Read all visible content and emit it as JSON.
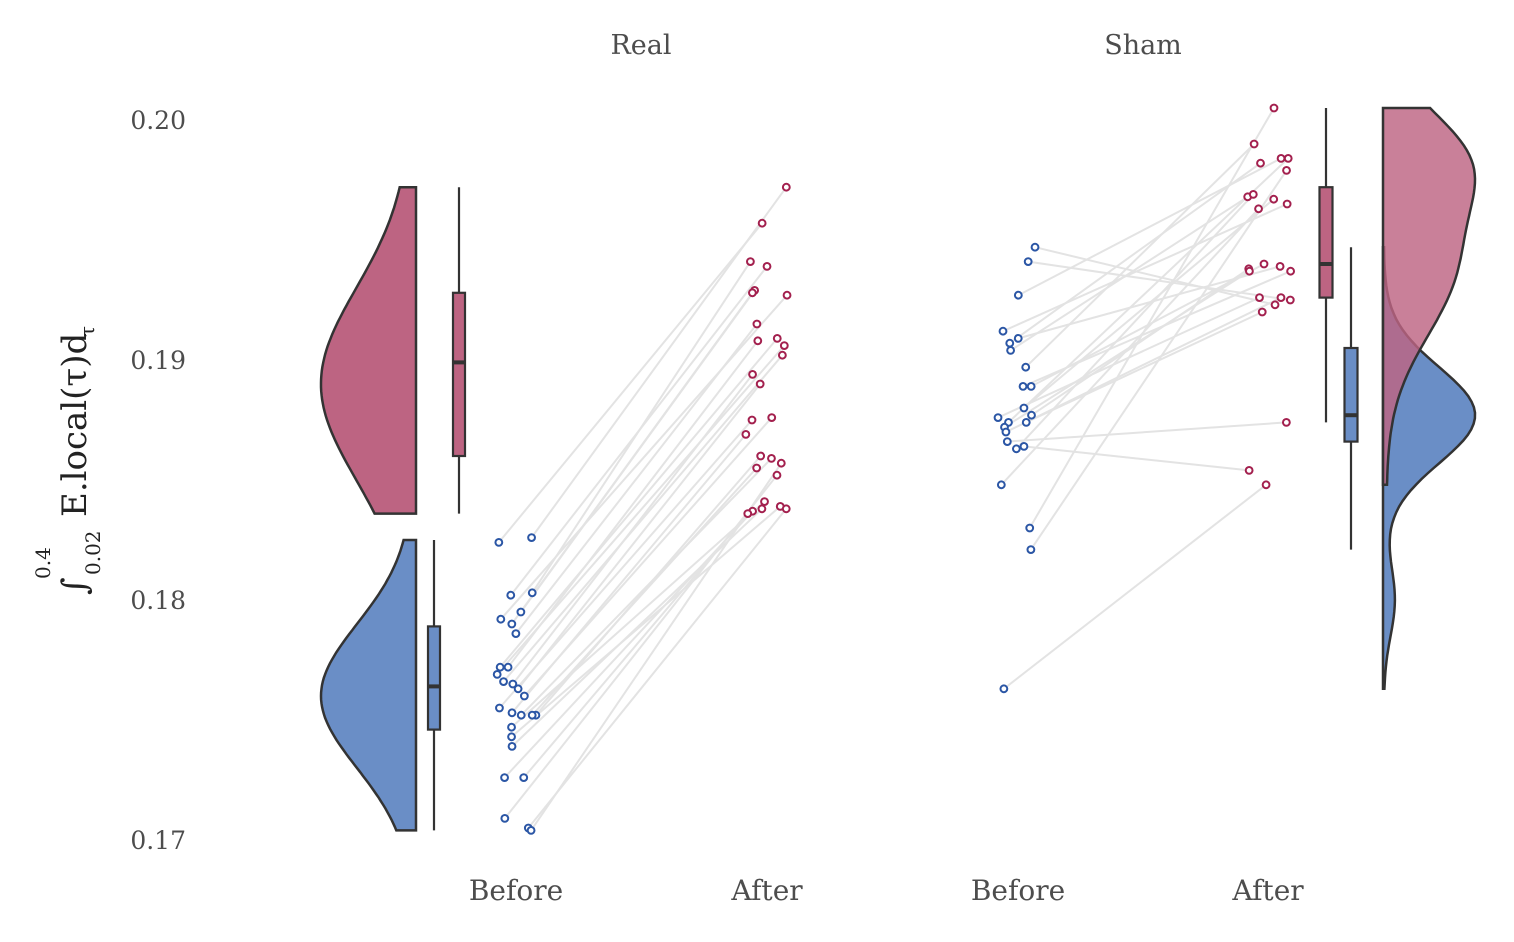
{
  "chart_data": {
    "type": "raincloud",
    "ylabel": {
      "integral_sign": "∫",
      "upper_limit": "0.4",
      "lower_limit": "0.02",
      "expression": "E.local(τ)d",
      "expression_subscript": "τ"
    },
    "ylim": [
      0.1685,
      0.2015
    ],
    "y_ticks": [
      0.17,
      0.18,
      0.19,
      0.2
    ],
    "y_tick_labels": [
      "0.17",
      "0.18",
      "0.19",
      "0.20"
    ],
    "colors": {
      "before": "#6a8ec6",
      "after": "#bd6482",
      "before_point": "#2b56a5",
      "after_point": "#a3204e",
      "overlap": "#82316a",
      "line": "#e3e3e3",
      "outline": "#333333"
    },
    "panels": [
      {
        "name": "Real",
        "x_labels": [
          "Before",
          "After"
        ],
        "pairs": [
          [
            0.1826,
            0.1972
          ],
          [
            0.1824,
            0.1957
          ],
          [
            0.1803,
            0.1941
          ],
          [
            0.1802,
            0.1939
          ],
          [
            0.1795,
            0.1929
          ],
          [
            0.1792,
            0.1927
          ],
          [
            0.179,
            0.1928
          ],
          [
            0.1786,
            0.1915
          ],
          [
            0.1772,
            0.1909
          ],
          [
            0.1772,
            0.1908
          ],
          [
            0.1769,
            0.1906
          ],
          [
            0.1766,
            0.1902
          ],
          [
            0.1765,
            0.1894
          ],
          [
            0.1763,
            0.189
          ],
          [
            0.176,
            0.1876
          ],
          [
            0.1755,
            0.1875
          ],
          [
            0.1753,
            0.1869
          ],
          [
            0.1752,
            0.186
          ],
          [
            0.1752,
            0.1859
          ],
          [
            0.1752,
            0.1855
          ],
          [
            0.1747,
            0.1841
          ],
          [
            0.1743,
            0.1839
          ],
          [
            0.1739,
            0.1838
          ],
          [
            0.1726,
            0.1837
          ],
          [
            0.1726,
            0.1836
          ],
          [
            0.1709,
            0.1852
          ],
          [
            0.1705,
            0.1838
          ],
          [
            0.1704,
            0.1857
          ]
        ],
        "before_box": {
          "min": 0.1704,
          "q1": 0.1746,
          "median": 0.1764,
          "q3": 0.1789,
          "max": 0.1825
        },
        "after_box": {
          "min": 0.1836,
          "q1": 0.186,
          "median": 0.1899,
          "q3": 0.1928,
          "max": 0.1972
        },
        "before_density": {
          "range": [
            0.1704,
            0.1825
          ],
          "peak": 0.176,
          "sd": 0.003
        },
        "after_density": {
          "range": [
            0.1836,
            0.1972
          ],
          "peak": 0.189,
          "sd": 0.004
        }
      },
      {
        "name": "Sham",
        "x_labels": [
          "Before",
          "After"
        ],
        "pairs": [
          [
            0.1947,
            0.1923
          ],
          [
            0.1941,
            0.1925
          ],
          [
            0.1927,
            0.1984
          ],
          [
            0.1912,
            0.1965
          ],
          [
            0.1909,
            0.1939
          ],
          [
            0.1907,
            0.1982
          ],
          [
            0.1904,
            0.1968
          ],
          [
            0.1897,
            0.199
          ],
          [
            0.1889,
            0.1937
          ],
          [
            0.1889,
            0.194
          ],
          [
            0.188,
            0.1967
          ],
          [
            0.1877,
            0.1938
          ],
          [
            0.1876,
            0.1926
          ],
          [
            0.1874,
            0.192
          ],
          [
            0.1874,
            0.1984
          ],
          [
            0.1872,
            0.1937
          ],
          [
            0.187,
            0.1926
          ],
          [
            0.1866,
            0.1874
          ],
          [
            0.1864,
            0.1854
          ],
          [
            0.1863,
            0.1969
          ],
          [
            0.1848,
            0.1963
          ],
          [
            0.183,
            0.2005
          ],
          [
            0.1821,
            0.1979
          ],
          [
            0.1763,
            0.1848
          ]
        ],
        "before_box": {
          "min": 0.1821,
          "q1": 0.1866,
          "median": 0.1877,
          "q3": 0.1905,
          "max": 0.1947
        },
        "after_box": {
          "min": 0.1874,
          "q1": 0.1926,
          "median": 0.194,
          "q3": 0.1972,
          "max": 0.2005
        },
        "before_density": {
          "range": [
            0.1763,
            0.1947
          ],
          "peak": 0.1877,
          "sd": 0.002,
          "tail": 0.18
        },
        "after_density": {
          "range": [
            0.1848,
            0.2005
          ],
          "peak": 0.194,
          "sd": 0.003,
          "secondary": 0.1985
        }
      }
    ]
  }
}
